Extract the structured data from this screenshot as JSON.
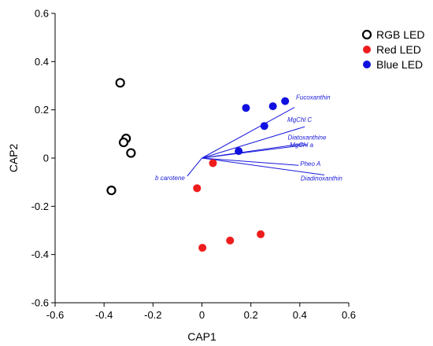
{
  "chart_data": {
    "type": "scatter",
    "xlabel": "CAP1",
    "ylabel": "CAP2",
    "xlim": [
      -0.6,
      0.6
    ],
    "ylim": [
      -0.6,
      0.6
    ],
    "xticks": [
      -0.6,
      -0.4,
      -0.2,
      0,
      0.2,
      0.4,
      0.6
    ],
    "yticks": [
      -0.6,
      -0.4,
      -0.2,
      0,
      0.2,
      0.4,
      0.6
    ],
    "xtick_labels": [
      "-0.6",
      "-0.4",
      "-0.2",
      "0",
      "0.2",
      "0.4",
      "0.6"
    ],
    "ytick_labels": [
      "-0.6",
      "-0.4",
      "-0.2",
      "0",
      "0.2",
      "0.4",
      "0.6"
    ],
    "grid": false,
    "legend_position": "top-right",
    "series": [
      {
        "name": "RGB LED",
        "marker": "open-circle",
        "color": "#000000",
        "points": [
          [
            -0.334,
            0.312
          ],
          [
            -0.31,
            0.081
          ],
          [
            -0.32,
            0.065
          ],
          [
            -0.29,
            0.021
          ],
          [
            -0.37,
            -0.134
          ]
        ]
      },
      {
        "name": "Red LED",
        "marker": "filled-circle",
        "color": "#ee1c1c",
        "points": [
          [
            0.045,
            -0.021
          ],
          [
            -0.02,
            -0.125
          ],
          [
            0.115,
            -0.342
          ],
          [
            0.24,
            -0.316
          ],
          [
            0.002,
            -0.372
          ]
        ]
      },
      {
        "name": "Blue LED",
        "marker": "filled-circle",
        "color": "#1010e0",
        "points": [
          [
            0.34,
            0.236
          ],
          [
            0.29,
            0.215
          ],
          [
            0.18,
            0.208
          ],
          [
            0.255,
            0.133
          ],
          [
            0.15,
            0.029
          ]
        ]
      }
    ],
    "vectors": {
      "color": "#1a1adb",
      "origin": [
        0,
        0
      ],
      "items": [
        {
          "label": "Fucoxanthin",
          "end": [
            0.378,
            0.21
          ]
        },
        {
          "label": "MgChl C",
          "end": [
            0.42,
            0.13
          ]
        },
        {
          "label": "Diatoxanthine",
          "end": [
            0.415,
            0.06
          ]
        },
        {
          "label": "MgChl a",
          "end": [
            0.43,
            0.055
          ]
        },
        {
          "label": "Pheo A",
          "end": [
            0.395,
            -0.03
          ]
        },
        {
          "label": "Diadinoxanthin",
          "end": [
            0.5,
            -0.07
          ]
        },
        {
          "label": "b carotene",
          "end": [
            -0.06,
            -0.075
          ]
        }
      ]
    }
  }
}
